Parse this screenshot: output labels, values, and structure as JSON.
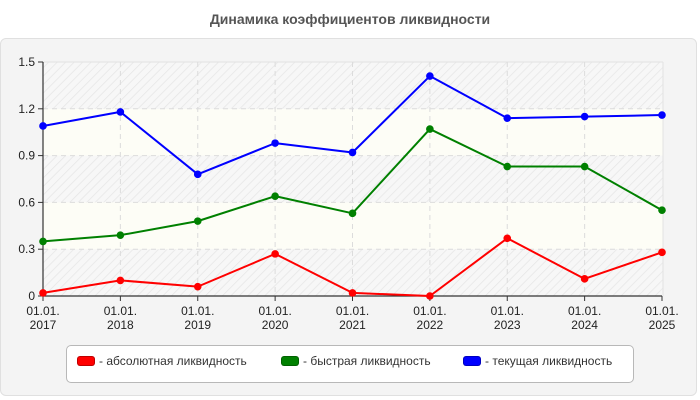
{
  "title": "Динамика коэффициентов ликвидности",
  "chart_data": {
    "type": "line",
    "title": "Динамика коэффициентов ликвидности",
    "xlabel": "",
    "ylabel": "",
    "categories": [
      "01.01.2017",
      "01.01.2018",
      "01.01.2019",
      "01.01.2020",
      "01.01.2021",
      "01.01.2022",
      "01.01.2023",
      "01.01.2024",
      "01.01.2025"
    ],
    "x_tick_lines": [
      [
        "01.01.",
        "2017"
      ],
      [
        "01.01.",
        "2018"
      ],
      [
        "01.01.",
        "2019"
      ],
      [
        "01.01.",
        "2020"
      ],
      [
        "01.01.",
        "2021"
      ],
      [
        "01.01.",
        "2022"
      ],
      [
        "01.01.",
        "2023"
      ],
      [
        "01.01.",
        "2024"
      ],
      [
        "01.01.",
        "2025"
      ]
    ],
    "y_ticks": [
      "0",
      "0.3",
      "0.6",
      "0.9",
      "1.2",
      "1.5"
    ],
    "ylim": [
      0,
      1.5
    ],
    "grid": true,
    "legend_position": "bottom",
    "series": [
      {
        "name": "абсолютная ликвидность",
        "color": "#ff0000",
        "values": [
          0.02,
          0.1,
          0.06,
          0.27,
          0.02,
          0.0,
          0.37,
          0.11,
          0.28
        ]
      },
      {
        "name": "быстрая ликвидность",
        "color": "#008000",
        "values": [
          0.35,
          0.39,
          0.48,
          0.64,
          0.53,
          1.07,
          0.83,
          0.83,
          0.55
        ]
      },
      {
        "name": "текущая ликвидность",
        "color": "#0000ff",
        "values": [
          1.09,
          1.18,
          0.78,
          0.98,
          0.92,
          1.41,
          1.14,
          1.15,
          1.16
        ]
      }
    ]
  },
  "legend": {
    "items": [
      {
        "label": "- абсолютная ликвидность",
        "color": "#ff0000"
      },
      {
        "label": "- быстрая ликвидность",
        "color": "#008000"
      },
      {
        "label": "- текущая ликвидность",
        "color": "#0000ff"
      }
    ]
  }
}
